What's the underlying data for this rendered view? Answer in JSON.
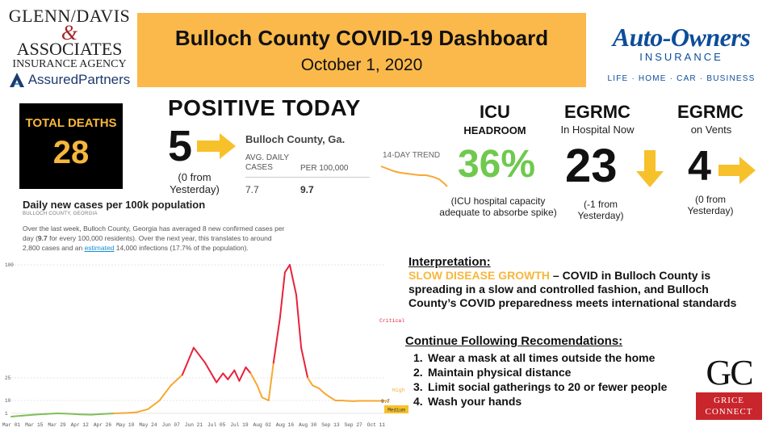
{
  "sponsor_left": {
    "line1": "GLENN/DAVIS",
    "amp": "&",
    "line2": "ASSOCIATES",
    "line3": "INSURANCE AGENCY",
    "line4": "AssuredPartners"
  },
  "header": {
    "title": "Bulloch County COVID-19 Dashboard",
    "date": "October 1, 2020"
  },
  "sponsor_right": {
    "name": "Auto-Owners",
    "sub": "INSURANCE",
    "tagline": "LIFE · HOME · CAR · BUSINESS"
  },
  "deaths": {
    "label": "TOTAL DEATHS",
    "value": "28"
  },
  "positive": {
    "title": "POSITIVE TODAY",
    "value": "5",
    "note": "(0 from Yesterday)",
    "trend_direction": "flat"
  },
  "stats": {
    "county": "Bulloch County, Ga.",
    "col1_header": "AVG. DAILY CASES",
    "col2_header": "PER 100,000",
    "col1_value": "7.7",
    "col2_value": "9.7",
    "trend_label": "14-DAY TREND"
  },
  "icu": {
    "title": "ICU",
    "subtitle": "HEADROOM",
    "value": "36%",
    "note": "(ICU hospital capacity adequate to absorbe spike)"
  },
  "hospital": {
    "title": "EGRMC",
    "subtitle": "In Hospital Now",
    "value": "23",
    "note": "(-1 from Yesterday)",
    "trend_direction": "down"
  },
  "vents": {
    "title": "EGRMC",
    "subtitle": "on Vents",
    "value": "4",
    "note": "(0 from Yesterday)",
    "trend_direction": "flat"
  },
  "chart_intro": {
    "title": "Daily new cases per 100k population",
    "subtitle": "BULLOCH COUNTY, GEORGIA",
    "desc_part1": "Over the last week, Bulloch County, Georgia has averaged 8 new confirmed cases per day (",
    "desc_bold": "9.7",
    "desc_part2": " for every 100,000 residents). Over the next year, this translates to around 2,800 cases and an ",
    "desc_link": "estimated",
    "desc_part3": " 14,000 infections (17.7% of the population)."
  },
  "colors": {
    "accent_orange": "#fbb94b",
    "icu_green": "#6fc94e",
    "arrow_yellow": "#f7c12b",
    "critical_red": "#e8213a",
    "moderate_orange": "#f7a833"
  },
  "chart_data": {
    "type": "line",
    "title": "",
    "xlabel": "",
    "ylabel": "",
    "x_ticks": [
      "Mar 01",
      "Mar 15",
      "Mar 29",
      "Apr 12",
      "Apr 26",
      "May 10",
      "May 24",
      "Jun 07",
      "Jun 21",
      "Jul 05",
      "Jul 19",
      "Aug 02",
      "Aug 16",
      "Aug 30",
      "Sep 13",
      "Sep 27",
      "Oct 11"
    ],
    "y_ticks": [
      "1",
      "10",
      "25",
      "100"
    ],
    "thresholds": [
      {
        "label": "Critical",
        "value": 25
      },
      {
        "label": "High",
        "value": 10
      },
      {
        "label": "Medium",
        "value": 1
      }
    ],
    "current_value_label": "9.7",
    "ylim": [
      0,
      100
    ],
    "series": [
      {
        "x": [
          0,
          7,
          14,
          21,
          28,
          35,
          42,
          49,
          56,
          63,
          70,
          77,
          84,
          91,
          98,
          105,
          112,
          119,
          126,
          130,
          133,
          137,
          140,
          144,
          147,
          151,
          154,
          158,
          161,
          165,
          168,
          171,
          175,
          178,
          182,
          185,
          189,
          192,
          196,
          199,
          203,
          206,
          210,
          213,
          217,
          221,
          224,
          227,
          231
        ],
        "values": [
          0,
          0.3,
          0.6,
          0.8,
          1.0,
          0.9,
          0.7,
          0.6,
          0.8,
          1.0,
          1.3,
          1.8,
          4,
          10,
          20,
          27,
          45,
          35,
          22,
          28,
          24,
          30,
          23,
          32,
          28,
          20,
          12,
          10,
          35,
          65,
          95,
          100,
          80,
          45,
          25,
          20,
          18,
          15,
          12,
          10,
          10,
          9.7,
          9.5,
          9.7,
          9.7,
          9.7,
          9.7,
          9.7,
          9.7
        ]
      }
    ]
  },
  "interpretation": {
    "heading": "Interpretation:",
    "highlight": "SLOW DISEASE GROWTH",
    "text": " – COVID in Bulloch County is spreading in a slow and controlled fashion, and Bulloch County’s COVID preparedness meets international standards"
  },
  "recommendations": {
    "heading": "Continue Following Recomendations:",
    "items": [
      {
        "num": "1.",
        "text": "Wear a mask at all times outside the home"
      },
      {
        "num": "2.",
        "text": "Maintain physical distance"
      },
      {
        "num": "3.",
        "text": "Limit social gatherings to 20 or fewer people"
      },
      {
        "num": "4.",
        "text": "Wash your hands"
      }
    ]
  },
  "sponsor_bottom": {
    "mark": "GC",
    "line1": "GRICE",
    "line2": "CONNECT"
  }
}
